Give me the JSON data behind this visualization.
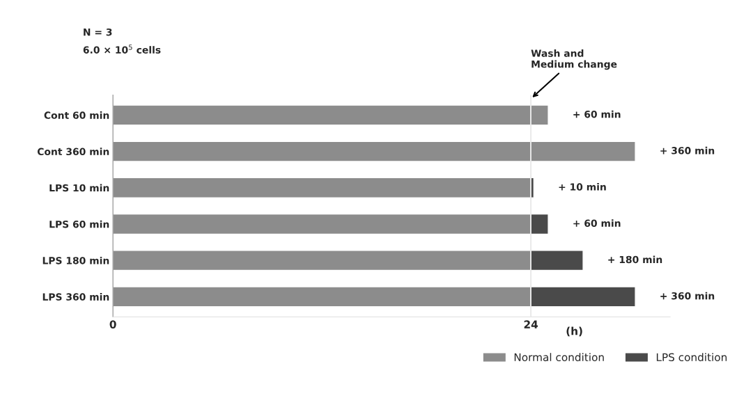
{
  "chart_data": {
    "type": "bar",
    "orientation": "horizontal",
    "stacked": true,
    "categories": [
      "Cont 60 min",
      "Cont 360 min",
      "LPS 10 min",
      "LPS 60 min",
      "LPS 180 min",
      "LPS 360 min"
    ],
    "series": [
      {
        "name": "Normal condition",
        "color": "#8c8c8c",
        "values": [
          24,
          24,
          24,
          24,
          24,
          24
        ]
      },
      {
        "name": "LPS condition",
        "color": "#4a4a4a",
        "colors": [
          "#8c8c8c",
          "#8c8c8c",
          "#4a4a4a",
          "#4a4a4a",
          "#4a4a4a",
          "#4a4a4a"
        ],
        "values": [
          1,
          6,
          0.17,
          1,
          3,
          6
        ]
      }
    ],
    "xlim": [
      0,
      32
    ],
    "xticks": [
      0,
      24
    ],
    "xlabel": "(h)",
    "ref_lines": [
      {
        "axis": "x",
        "value": 24,
        "label": "Wash and\nMedium change",
        "color": "#e6e6e6"
      }
    ],
    "annotations": [
      "N = 3",
      "6.0 × 10$^{5}$ cells",
      {
        "text": "+ 60 min",
        "x": 25,
        "y": "Cont 60 min"
      },
      {
        "text": "+ 360 min",
        "x": 30,
        "y": "Cont 360 min"
      },
      {
        "text": "+ 10 min",
        "x": 24.17,
        "y": "LPS 10 min"
      },
      {
        "text": "+ 60 min",
        "x": 25,
        "y": "LPS 60 min"
      },
      {
        "text": "+ 180 min",
        "x": 27,
        "y": "LPS 180 min"
      },
      {
        "text": "+ 360 min",
        "x": 30,
        "y": "LPS 360 min"
      }
    ],
    "legend": "bottom right",
    "grid": false
  }
}
